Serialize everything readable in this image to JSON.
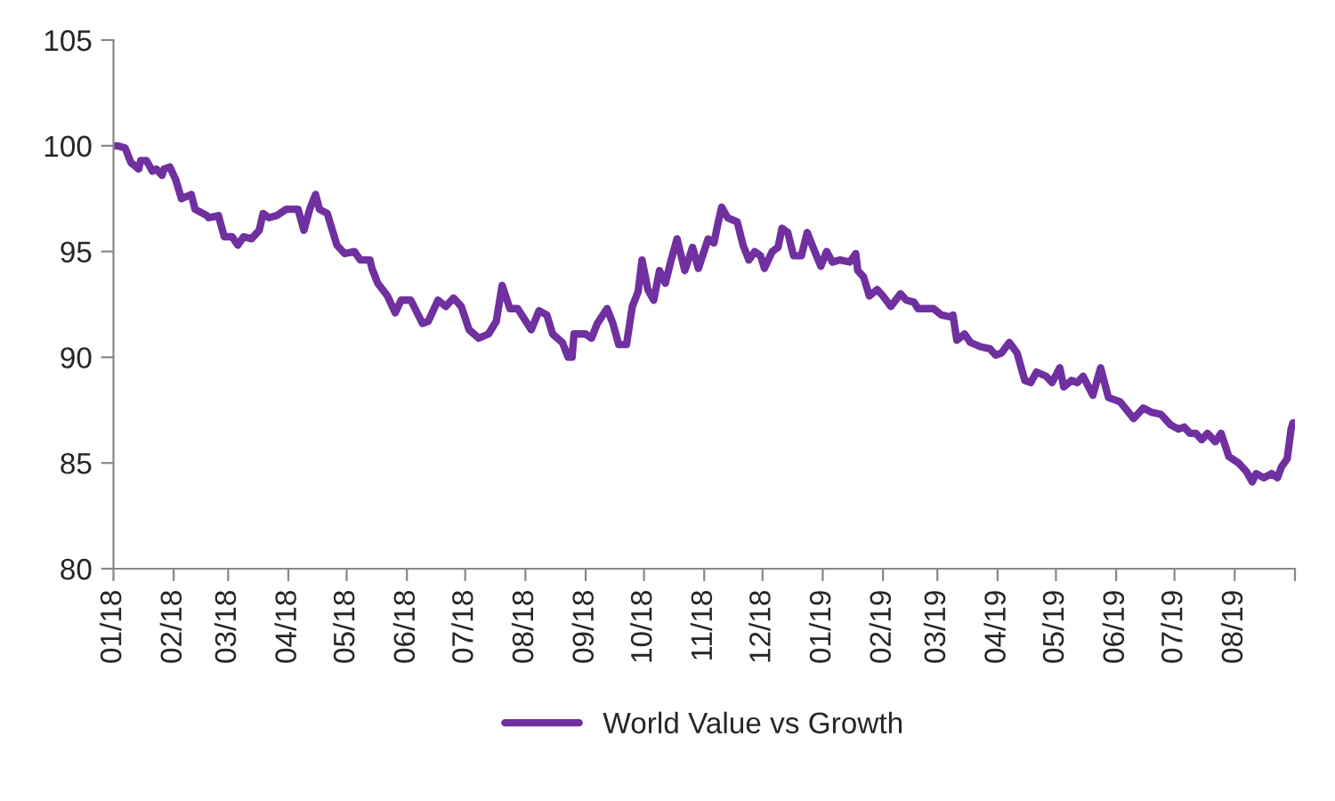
{
  "chart_data": {
    "type": "line",
    "legend": "bottom",
    "grid": false,
    "marker": "none",
    "line_style": "solid",
    "xlim": [
      "2018-01-01",
      "2019-09-01"
    ],
    "xticks": [
      {
        "value": "2018-01-01",
        "label": "01/18"
      },
      {
        "value": "2018-02-01",
        "label": "02/18"
      },
      {
        "value": "2018-03-01",
        "label": "03/18"
      },
      {
        "value": "2018-04-01",
        "label": "04/18"
      },
      {
        "value": "2018-05-01",
        "label": "05/18"
      },
      {
        "value": "2018-06-01",
        "label": "06/18"
      },
      {
        "value": "2018-07-01",
        "label": "07/18"
      },
      {
        "value": "2018-08-01",
        "label": "08/18"
      },
      {
        "value": "2018-09-01",
        "label": "09/18"
      },
      {
        "value": "2018-10-01",
        "label": "10/18"
      },
      {
        "value": "2018-11-01",
        "label": "11/18"
      },
      {
        "value": "2018-12-01",
        "label": "12/18"
      },
      {
        "value": "2019-01-01",
        "label": "01/19"
      },
      {
        "value": "2019-02-01",
        "label": "02/19"
      },
      {
        "value": "2019-03-01",
        "label": "03/19"
      },
      {
        "value": "2019-04-01",
        "label": "04/19"
      },
      {
        "value": "2019-05-01",
        "label": "05/19"
      },
      {
        "value": "2019-06-01",
        "label": "06/19"
      },
      {
        "value": "2019-07-01",
        "label": "07/19"
      },
      {
        "value": "2019-08-01",
        "label": "08/19"
      },
      {
        "value": "2019-09-01",
        "label": null
      }
    ],
    "ylim": [
      80,
      105
    ],
    "yticks": [
      80,
      85,
      90,
      95,
      100,
      105
    ],
    "series": [
      {
        "name": "World Value vs Growth",
        "color": "#7030a0",
        "x": [
          "2018-01-01",
          "2018-01-03",
          "2018-01-07",
          "2018-01-10",
          "2018-01-14",
          "2018-01-15",
          "2018-01-18",
          "2018-01-21",
          "2018-01-23",
          "2018-01-26",
          "2018-01-27",
          "2018-01-30",
          "2018-02-02",
          "2018-02-05",
          "2018-02-10",
          "2018-02-12",
          "2018-02-18",
          "2018-02-19",
          "2018-02-24",
          "2018-02-27",
          "2018-03-03",
          "2018-03-06",
          "2018-03-09",
          "2018-03-13",
          "2018-03-17",
          "2018-03-19",
          "2018-03-22",
          "2018-03-26",
          "2018-03-31",
          "2018-04-06",
          "2018-04-09",
          "2018-04-12",
          "2018-04-15",
          "2018-04-17",
          "2018-04-21",
          "2018-04-26",
          "2018-04-30",
          "2018-05-05",
          "2018-05-08",
          "2018-05-13",
          "2018-05-14",
          "2018-05-17",
          "2018-05-22",
          "2018-05-26",
          "2018-05-29",
          "2018-06-03",
          "2018-06-09",
          "2018-06-12",
          "2018-06-17",
          "2018-06-21",
          "2018-06-25",
          "2018-06-29",
          "2018-07-03",
          "2018-07-08",
          "2018-07-13",
          "2018-07-17",
          "2018-07-20",
          "2018-07-24",
          "2018-07-28",
          "2018-08-04",
          "2018-08-08",
          "2018-08-12",
          "2018-08-15",
          "2018-08-20",
          "2018-08-23",
          "2018-08-25",
          "2018-08-26",
          "2018-09-01",
          "2018-09-04",
          "2018-09-07",
          "2018-09-12",
          "2018-09-15",
          "2018-09-18",
          "2018-09-22",
          "2018-09-25",
          "2018-09-28",
          "2018-09-30",
          "2018-10-03",
          "2018-10-06",
          "2018-10-09",
          "2018-10-12",
          "2018-10-15",
          "2018-10-18",
          "2018-10-22",
          "2018-10-26",
          "2018-10-29",
          "2018-11-03",
          "2018-11-06",
          "2018-11-08",
          "2018-11-10",
          "2018-11-13",
          "2018-11-18",
          "2018-11-21",
          "2018-11-24",
          "2018-11-27",
          "2018-11-30",
          "2018-12-02",
          "2018-12-06",
          "2018-12-09",
          "2018-12-11",
          "2018-12-14",
          "2018-12-17",
          "2018-12-21",
          "2018-12-24",
          "2018-12-27",
          "2018-12-31",
          "2019-01-03",
          "2019-01-06",
          "2019-01-10",
          "2019-01-15",
          "2019-01-18",
          "2019-01-19",
          "2019-01-22",
          "2019-01-25",
          "2019-01-29",
          "2019-02-01",
          "2019-02-05",
          "2019-02-10",
          "2019-02-13",
          "2019-02-17",
          "2019-02-19",
          "2019-02-27",
          "2019-03-03",
          "2019-03-08",
          "2019-03-09",
          "2019-03-11",
          "2019-03-15",
          "2019-03-18",
          "2019-03-23",
          "2019-03-28",
          "2019-03-31",
          "2019-04-03",
          "2019-04-07",
          "2019-04-11",
          "2019-04-15",
          "2019-04-18",
          "2019-04-21",
          "2019-04-26",
          "2019-04-29",
          "2019-05-03",
          "2019-05-05",
          "2019-05-09",
          "2019-05-12",
          "2019-05-15",
          "2019-05-20",
          "2019-05-24",
          "2019-05-28",
          "2019-06-03",
          "2019-06-10",
          "2019-06-15",
          "2019-06-19",
          "2019-06-24",
          "2019-06-29",
          "2019-07-03",
          "2019-07-06",
          "2019-07-09",
          "2019-07-12",
          "2019-07-15",
          "2019-07-18",
          "2019-07-22",
          "2019-07-25",
          "2019-07-29",
          "2019-08-03",
          "2019-08-07",
          "2019-08-10",
          "2019-08-12",
          "2019-08-16",
          "2019-08-20",
          "2019-08-23",
          "2019-08-25",
          "2019-08-28",
          "2019-08-30",
          "2019-08-31"
        ],
        "values": [
          100.0,
          100.0,
          99.9,
          99.2,
          98.9,
          99.3,
          99.3,
          98.8,
          98.9,
          98.6,
          98.9,
          99.0,
          98.4,
          97.5,
          97.7,
          97.0,
          96.7,
          96.6,
          96.7,
          95.7,
          95.7,
          95.3,
          95.7,
          95.6,
          96.0,
          96.8,
          96.6,
          96.7,
          97.0,
          97.0,
          96.0,
          97.0,
          97.7,
          97.0,
          96.8,
          95.3,
          94.9,
          95.0,
          94.6,
          94.6,
          94.2,
          93.5,
          92.9,
          92.1,
          92.7,
          92.7,
          91.6,
          91.7,
          92.7,
          92.4,
          92.8,
          92.4,
          91.3,
          90.9,
          91.1,
          91.7,
          93.4,
          92.3,
          92.3,
          91.3,
          92.2,
          92.0,
          91.1,
          90.7,
          90.0,
          90.0,
          91.1,
          91.1,
          90.9,
          91.6,
          92.3,
          91.6,
          90.6,
          90.6,
          92.4,
          93.1,
          94.6,
          93.2,
          92.7,
          94.1,
          93.5,
          94.6,
          95.6,
          94.1,
          95.2,
          94.2,
          95.6,
          95.4,
          96.3,
          97.1,
          96.6,
          96.4,
          95.3,
          94.6,
          95.0,
          94.8,
          94.2,
          95.0,
          95.2,
          96.1,
          95.9,
          94.8,
          94.8,
          95.9,
          95.2,
          94.3,
          95.0,
          94.5,
          94.6,
          94.5,
          94.9,
          94.1,
          93.8,
          92.9,
          93.2,
          92.9,
          92.4,
          93.0,
          92.7,
          92.6,
          92.3,
          92.3,
          92.0,
          91.9,
          92.0,
          90.8,
          91.1,
          90.7,
          90.5,
          90.4,
          90.1,
          90.2,
          90.7,
          90.2,
          88.9,
          88.8,
          89.3,
          89.1,
          88.8,
          89.5,
          88.6,
          88.9,
          88.8,
          89.1,
          88.2,
          89.5,
          88.1,
          87.9,
          87.1,
          87.6,
          87.4,
          87.3,
          86.8,
          86.6,
          86.7,
          86.4,
          86.4,
          86.1,
          86.4,
          86.0,
          86.4,
          85.3,
          85.0,
          84.6,
          84.1,
          84.5,
          84.3,
          84.5,
          84.3,
          84.8,
          85.2,
          86.6,
          86.9
        ]
      }
    ]
  }
}
